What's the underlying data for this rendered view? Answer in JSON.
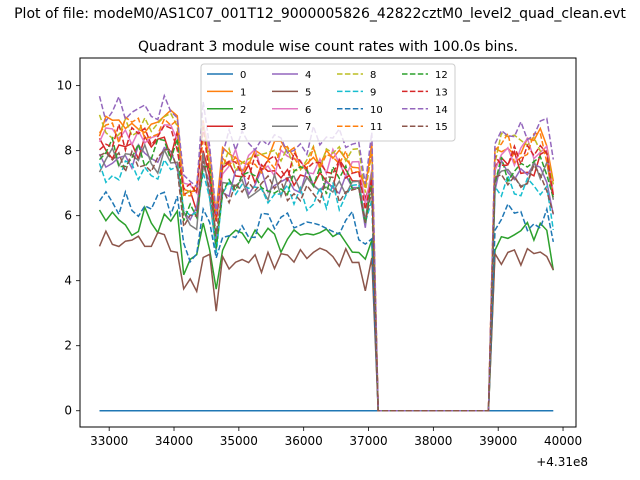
{
  "chart_data": {
    "type": "line",
    "suptitle": "Plot of file: modeM0/AS1C07_001T12_9000005826_42822cztM0_level2_quad_clean.evt",
    "title": "Quadrant 3 module wise count rates with 100.0s bins.",
    "xlabel": "",
    "ylabel": "",
    "x_offset_label": "+4.31e8",
    "xlim": [
      32550,
      40200
    ],
    "ylim": [
      -0.5,
      10.85
    ],
    "xticks": [
      33000,
      34000,
      35000,
      36000,
      37000,
      38000,
      39000,
      40000
    ],
    "xtick_labels": [
      "33000",
      "34000",
      "35000",
      "36000",
      "37000",
      "38000",
      "39000",
      "40000"
    ],
    "yticks": [
      0,
      2,
      4,
      6,
      8,
      10
    ],
    "ytick_labels": [
      "0",
      "2",
      "4",
      "6",
      "8",
      "10"
    ],
    "x_start": 32850,
    "x_end": 39850,
    "x_step": 100,
    "series": [
      {
        "name": "0",
        "color": "#1f77b4",
        "dash": "solid",
        "level": 0.0
      },
      {
        "name": "1",
        "color": "#ff7f0e",
        "dash": "solid",
        "level": 7.9
      },
      {
        "name": "2",
        "color": "#2ca02c",
        "dash": "solid",
        "level": 5.2
      },
      {
        "name": "3",
        "color": "#d62728",
        "dash": "solid",
        "level": 7.3
      },
      {
        "name": "4",
        "color": "#9467bd",
        "dash": "solid",
        "level": 7.0
      },
      {
        "name": "5",
        "color": "#8c564b",
        "dash": "solid",
        "level": 4.6
      },
      {
        "name": "6",
        "color": "#e377c2",
        "dash": "solid",
        "level": 7.6
      },
      {
        "name": "7",
        "color": "#7f7f7f",
        "dash": "solid",
        "level": 6.9
      },
      {
        "name": "8",
        "color": "#bcbd22",
        "dash": "dashed",
        "level": 7.8
      },
      {
        "name": "9",
        "color": "#17becf",
        "dash": "dashed",
        "level": 6.6
      },
      {
        "name": "10",
        "color": "#1f77b4",
        "dash": "dashed",
        "level": 5.7
      },
      {
        "name": "11",
        "color": "#ff7f0e",
        "dash": "dashed",
        "level": 7.7
      },
      {
        "name": "12",
        "color": "#2ca02c",
        "dash": "dashed",
        "level": 7.1
      },
      {
        "name": "13",
        "color": "#d62728",
        "dash": "dashed",
        "level": 7.5
      },
      {
        "name": "14",
        "color": "#9467bd",
        "dash": "dashed",
        "level": 8.3
      },
      {
        "name": "15",
        "color": "#8c564b",
        "dash": "dashed",
        "level": 6.8
      }
    ],
    "gaps": [
      [
        34500,
        34500
      ],
      [
        37100,
        38900
      ]
    ],
    "legend": {
      "position": "upper-center",
      "columns": 4
    }
  }
}
